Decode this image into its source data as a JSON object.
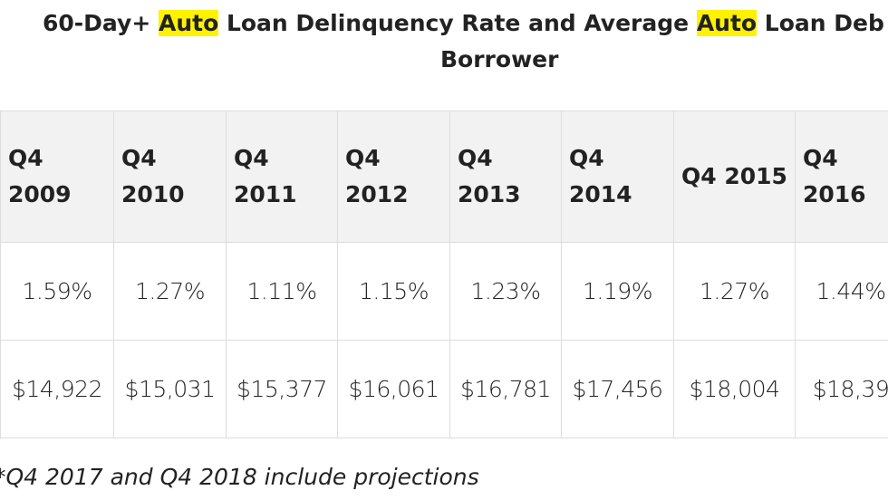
{
  "title": {
    "line1": [
      "60-Day+ ",
      "Auto",
      " Loan Delinquency Rate and Average ",
      "Auto",
      " Loan Deb"
    ],
    "line2": "Borrower"
  },
  "table": {
    "header": [
      "Q4 2009",
      "Q4 2010",
      "Q4 2011",
      "Q4 2012",
      "Q4 2013",
      "Q4 2014",
      "Q4 2015",
      "Q4 2016"
    ],
    "rows": [
      [
        "1.59%",
        "1.27%",
        "1.11%",
        "1.15%",
        "1.23%",
        "1.19%",
        "1.27%",
        "1.44%"
      ],
      [
        "$14,922",
        "$15,031",
        "$15,377",
        "$16,061",
        "$16,781",
        "$17,456",
        "$18,004",
        "$18,39"
      ]
    ]
  },
  "footnote": "*Q4 2017 and Q4 2018 include projections"
}
